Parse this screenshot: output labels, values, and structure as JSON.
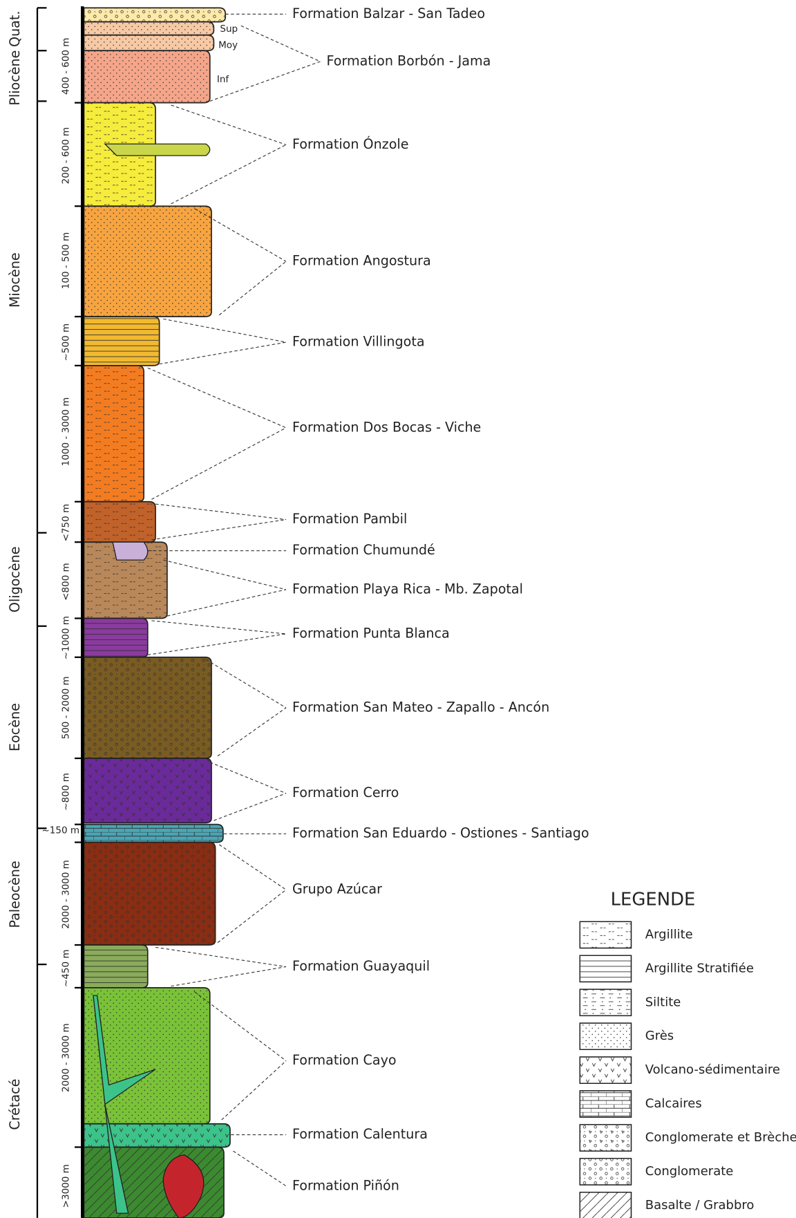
{
  "epochs": [
    "Quat.",
    "Pliocène",
    "Miocène",
    "Oligocène",
    "Eocène",
    "Paleocène",
    "Crétacé"
  ],
  "thicknesses": [
    "400 - 600 m",
    "200 - 600 m",
    "100 - 500 m",
    "~500 m",
    "1000 - 3000 m",
    "<750 m",
    "<800 m",
    "~1000 m",
    "500 - 2000 m",
    "~800 m",
    "~150 m",
    "2000 - 3000 m",
    "~450 m",
    "2000 - 3000 m",
    ">3000 m"
  ],
  "sublayers": [
    "Sup",
    "Moy",
    "Inf"
  ],
  "formations": [
    "Formation Balzar - San Tadeo",
    "Formation Borbón - Jama",
    "Formation Ónzole",
    "Formation Angostura",
    "Formation Villingota",
    "Formation Dos Bocas - Viche",
    "Formation Pambil",
    "Formation Chumundé",
    "Formation Playa Rica - Mb. Zapotal",
    "Formation Punta Blanca",
    "Formation San Mateo - Zapallo - Ancón",
    "Formation Cerro",
    "Formation San Eduardo - Ostiones - Santiago",
    "Grupo Azúcar",
    "Formation Guayaquil",
    "Formation Cayo",
    "Formation Calentura",
    "Formation Piñón"
  ],
  "legend": {
    "title": "LEGENDE",
    "items": [
      "Argillite",
      "Argillite Stratifiée",
      "Siltite",
      "Grès",
      "Volcano-sédimentaire",
      "Calcaires",
      "Conglomerate et Brèche",
      "Conglomerate",
      "Basalte / Grabbro"
    ]
  }
}
